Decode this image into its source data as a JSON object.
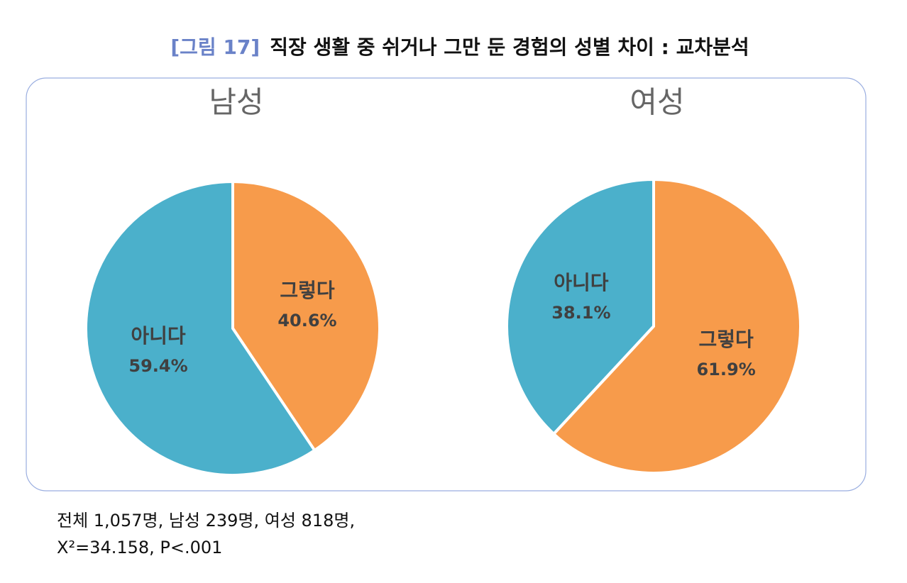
{
  "figure_label": "[그림 17]",
  "title": "직장 생활 중 쉬거나 그만 둔 경험의 성별 차이 : 교차분석",
  "chart_data": [
    {
      "type": "pie",
      "title": "남성",
      "categories": [
        "그렇다",
        "아니다"
      ],
      "values": [
        40.6,
        59.4
      ],
      "value_labels": [
        "40.6%",
        "59.4%"
      ],
      "colors": [
        "#f79b4b",
        "#4bb0cb"
      ]
    },
    {
      "type": "pie",
      "title": "여성",
      "categories": [
        "그렇다",
        "아니다"
      ],
      "values": [
        61.9,
        38.1
      ],
      "value_labels": [
        "61.9%",
        "38.1%"
      ],
      "colors": [
        "#f79b4b",
        "#4bb0cb"
      ]
    }
  ],
  "notes": [
    "전체 1,057명, 남성 239명, 여성 818명,",
    "X²=34.158, P<.001"
  ]
}
